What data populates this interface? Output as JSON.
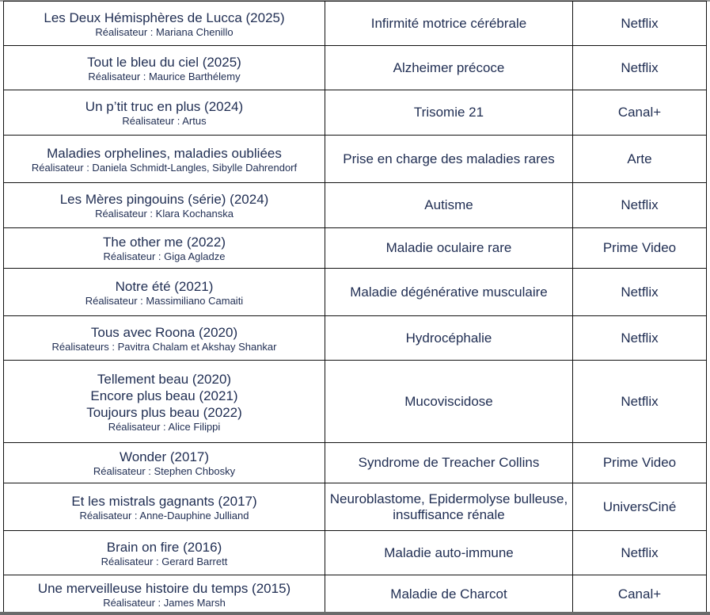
{
  "rows": [
    {
      "titles": [
        "Les Deux Hémisphères de Lucca (2025)"
      ],
      "director": "Réalisateur : Mariana Chenillo",
      "condition": "Infirmité motrice cérébrale",
      "platform": "Netflix"
    },
    {
      "titles": [
        "Tout le bleu du ciel (2025)"
      ],
      "director": "Réalisateur : Maurice Barthélemy",
      "condition": "Alzheimer précoce",
      "platform": "Netflix"
    },
    {
      "titles": [
        "Un p’tit truc en plus (2024)"
      ],
      "director": "Réalisateur : Artus",
      "condition": "Trisomie 21",
      "platform": "Canal+"
    },
    {
      "titles": [
        "Maladies orphelines, maladies oubliées"
      ],
      "director": "Réalisateur : Daniela Schmidt-Langles, Sibylle Dahrendorf",
      "condition": "Prise en charge des maladies rares",
      "platform": "Arte"
    },
    {
      "titles": [
        "Les Mères pingouins (série) (2024)"
      ],
      "director": "Réalisateur : Klara Kochanska",
      "condition": "Autisme",
      "platform": "Netflix"
    },
    {
      "titles": [
        "The other me (2022)"
      ],
      "director": "Réalisateur : Giga Agladze",
      "condition": "Maladie oculaire rare",
      "platform": "Prime Video"
    },
    {
      "titles": [
        "Notre été (2021)"
      ],
      "director": "Réalisateur : Massimiliano Camaiti",
      "condition": "Maladie dégénérative musculaire",
      "platform": "Netflix"
    },
    {
      "titles": [
        "Tous avec Roona (2020)"
      ],
      "director": "Réalisateurs : Pavitra Chalam et Akshay Shankar",
      "condition": "Hydrocéphalie",
      "platform": "Netflix"
    },
    {
      "titles": [
        "Tellement beau (2020)",
        "Encore plus beau (2021)",
        "Toujours plus beau (2022)"
      ],
      "director": "Réalisateur : Alice Filippi",
      "condition": "Mucoviscidose",
      "platform": "Netflix"
    },
    {
      "titles": [
        "Wonder (2017)"
      ],
      "director": "Réalisateur : Stephen Chbosky",
      "condition": "Syndrome de Treacher Collins",
      "platform": "Prime Video"
    },
    {
      "titles": [
        "Et les mistrals gagnants (2017)"
      ],
      "director": "Réalisateur : Anne-Dauphine Julliand",
      "condition": "Neuroblastome, Epidermolyse bulleuse, insuffisance rénale",
      "platform": "UniversCiné"
    },
    {
      "titles": [
        "Brain on fire (2016)"
      ],
      "director": "Réalisateur : Gerard Barrett",
      "condition": "Maladie auto-immune",
      "platform": "Netflix"
    },
    {
      "titles": [
        "Une merveilleuse histoire du temps (2015)"
      ],
      "director": "Réalisateur : James Marsh",
      "condition": "Maladie de Charcot",
      "platform": "Canal+"
    }
  ]
}
